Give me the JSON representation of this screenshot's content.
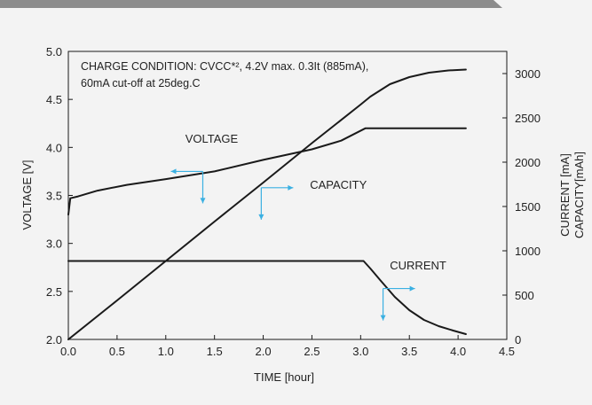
{
  "chart_data": {
    "type": "line",
    "annotation_lines": [
      "CHARGE CONDITION: CVCC*², 4.2V max. 0.3It (885mA),",
      "60mA cut-off at 25deg.C"
    ],
    "xlabel": "TIME  [hour]",
    "ylabel_left": "VOLTAGE  [V]",
    "ylabel_right_1": "CURRENT [mA]",
    "ylabel_right_2": "CAPACITY[mAh]",
    "xlim": [
      0.0,
      4.5
    ],
    "ylim_left": [
      2.0,
      5.0
    ],
    "ylim_right": [
      0,
      3250
    ],
    "x_ticks": [
      "0.0",
      "0.5",
      "1.0",
      "1.5",
      "2.0",
      "2.5",
      "3.0",
      "3.5",
      "4.0",
      "4.5"
    ],
    "y_left_ticks": [
      "2.0",
      "2.5",
      "3.0",
      "3.5",
      "4.0",
      "4.5",
      "5.0"
    ],
    "y_right_ticks": [
      "0",
      "500",
      "1000",
      "1500",
      "2000",
      "2500",
      "3000"
    ],
    "grid": false,
    "series": [
      {
        "name": "VOLTAGE",
        "axis": "left",
        "points": [
          [
            0.0,
            3.3
          ],
          [
            0.02,
            3.47
          ],
          [
            0.1,
            3.49
          ],
          [
            0.3,
            3.55
          ],
          [
            0.6,
            3.61
          ],
          [
            1.0,
            3.67
          ],
          [
            1.5,
            3.75
          ],
          [
            2.0,
            3.87
          ],
          [
            2.5,
            3.98
          ],
          [
            2.8,
            4.07
          ],
          [
            3.05,
            4.2
          ],
          [
            4.08,
            4.2
          ]
        ]
      },
      {
        "name": "CAPACITY",
        "axis": "right",
        "points": [
          [
            0.0,
            0
          ],
          [
            0.5,
            440
          ],
          [
            1.0,
            885
          ],
          [
            1.5,
            1330
          ],
          [
            2.0,
            1770
          ],
          [
            2.5,
            2215
          ],
          [
            3.0,
            2650
          ],
          [
            3.1,
            2740
          ],
          [
            3.3,
            2880
          ],
          [
            3.5,
            2960
          ],
          [
            3.7,
            3010
          ],
          [
            3.9,
            3035
          ],
          [
            4.08,
            3045
          ]
        ]
      },
      {
        "name": "CURRENT",
        "axis": "right",
        "points": [
          [
            0.0,
            885
          ],
          [
            3.03,
            885
          ],
          [
            3.1,
            800
          ],
          [
            3.2,
            670
          ],
          [
            3.35,
            480
          ],
          [
            3.5,
            330
          ],
          [
            3.65,
            220
          ],
          [
            3.8,
            150
          ],
          [
            3.95,
            100
          ],
          [
            4.08,
            60
          ]
        ]
      }
    ],
    "labels": [
      {
        "text": "VOLTAGE",
        "x": 1.2,
        "y_left": 4.05
      },
      {
        "text": "CAPACITY",
        "x": 2.48,
        "y_left": 3.57
      },
      {
        "text": "CURRENT",
        "x": 3.3,
        "y_left": 2.73
      }
    ],
    "arrows": [
      {
        "series": "VOLTAGE",
        "x": 1.38,
        "y_left": 3.75,
        "direction": "left",
        "tail": "down"
      },
      {
        "series": "CAPACITY",
        "x": 1.98,
        "y_left": 3.58,
        "direction": "right",
        "tail": "down"
      },
      {
        "series": "CURRENT",
        "x": 3.23,
        "y_left": 2.53,
        "direction": "right",
        "tail": "down"
      }
    ]
  },
  "colors": {
    "line": "#1a1a1a",
    "arrow": "#3ab0e2",
    "text": "#222222",
    "top_band": "#8c8c8c",
    "background": "#f3f3f3"
  }
}
